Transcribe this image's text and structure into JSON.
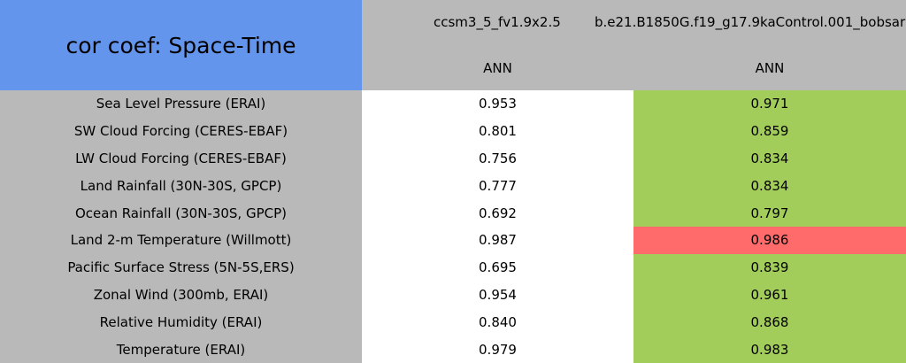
{
  "header": {
    "title": "cor coef: Space-Time",
    "columns": [
      {
        "name": "ccsm3_5_fv1.9x2.5",
        "season": "ANN"
      },
      {
        "name": "b.e21.B1850G.f19_g17.9kaControl.001_bobsar",
        "season": "ANN"
      }
    ],
    "title_color": "#6495ed",
    "header_color": "#b9b9b9"
  },
  "table": {
    "rows": [
      {
        "label": "Sea Level Pressure (ERAI)",
        "cells": [
          {
            "value": "0.953",
            "color": "#ffffff"
          },
          {
            "value": "0.971",
            "color": "#a2cd5a"
          }
        ]
      },
      {
        "label": "SW Cloud Forcing (CERES-EBAF)",
        "cells": [
          {
            "value": "0.801",
            "color": "#ffffff"
          },
          {
            "value": "0.859",
            "color": "#a2cd5a"
          }
        ]
      },
      {
        "label": "LW Cloud Forcing (CERES-EBAF)",
        "cells": [
          {
            "value": "0.756",
            "color": "#ffffff"
          },
          {
            "value": "0.834",
            "color": "#a2cd5a"
          }
        ]
      },
      {
        "label": "Land Rainfall (30N-30S, GPCP)",
        "cells": [
          {
            "value": "0.777",
            "color": "#ffffff"
          },
          {
            "value": "0.834",
            "color": "#a2cd5a"
          }
        ]
      },
      {
        "label": "Ocean Rainfall (30N-30S, GPCP)",
        "cells": [
          {
            "value": "0.692",
            "color": "#ffffff"
          },
          {
            "value": "0.797",
            "color": "#a2cd5a"
          }
        ]
      },
      {
        "label": "Land 2-m Temperature (Willmott)",
        "cells": [
          {
            "value": "0.987",
            "color": "#ffffff"
          },
          {
            "value": "0.986",
            "color": "#ff6a6a"
          }
        ]
      },
      {
        "label": "Pacific Surface Stress (5N-5S,ERS)",
        "cells": [
          {
            "value": "0.695",
            "color": "#ffffff"
          },
          {
            "value": "0.839",
            "color": "#a2cd5a"
          }
        ]
      },
      {
        "label": "Zonal Wind (300mb, ERAI)",
        "cells": [
          {
            "value": "0.954",
            "color": "#ffffff"
          },
          {
            "value": "0.961",
            "color": "#a2cd5a"
          }
        ]
      },
      {
        "label": "Relative Humidity (ERAI)",
        "cells": [
          {
            "value": "0.840",
            "color": "#ffffff"
          },
          {
            "value": "0.868",
            "color": "#a2cd5a"
          }
        ]
      },
      {
        "label": "Temperature (ERAI)",
        "cells": [
          {
            "value": "0.979",
            "color": "#ffffff"
          },
          {
            "value": "0.983",
            "color": "#a2cd5a"
          }
        ]
      }
    ]
  }
}
